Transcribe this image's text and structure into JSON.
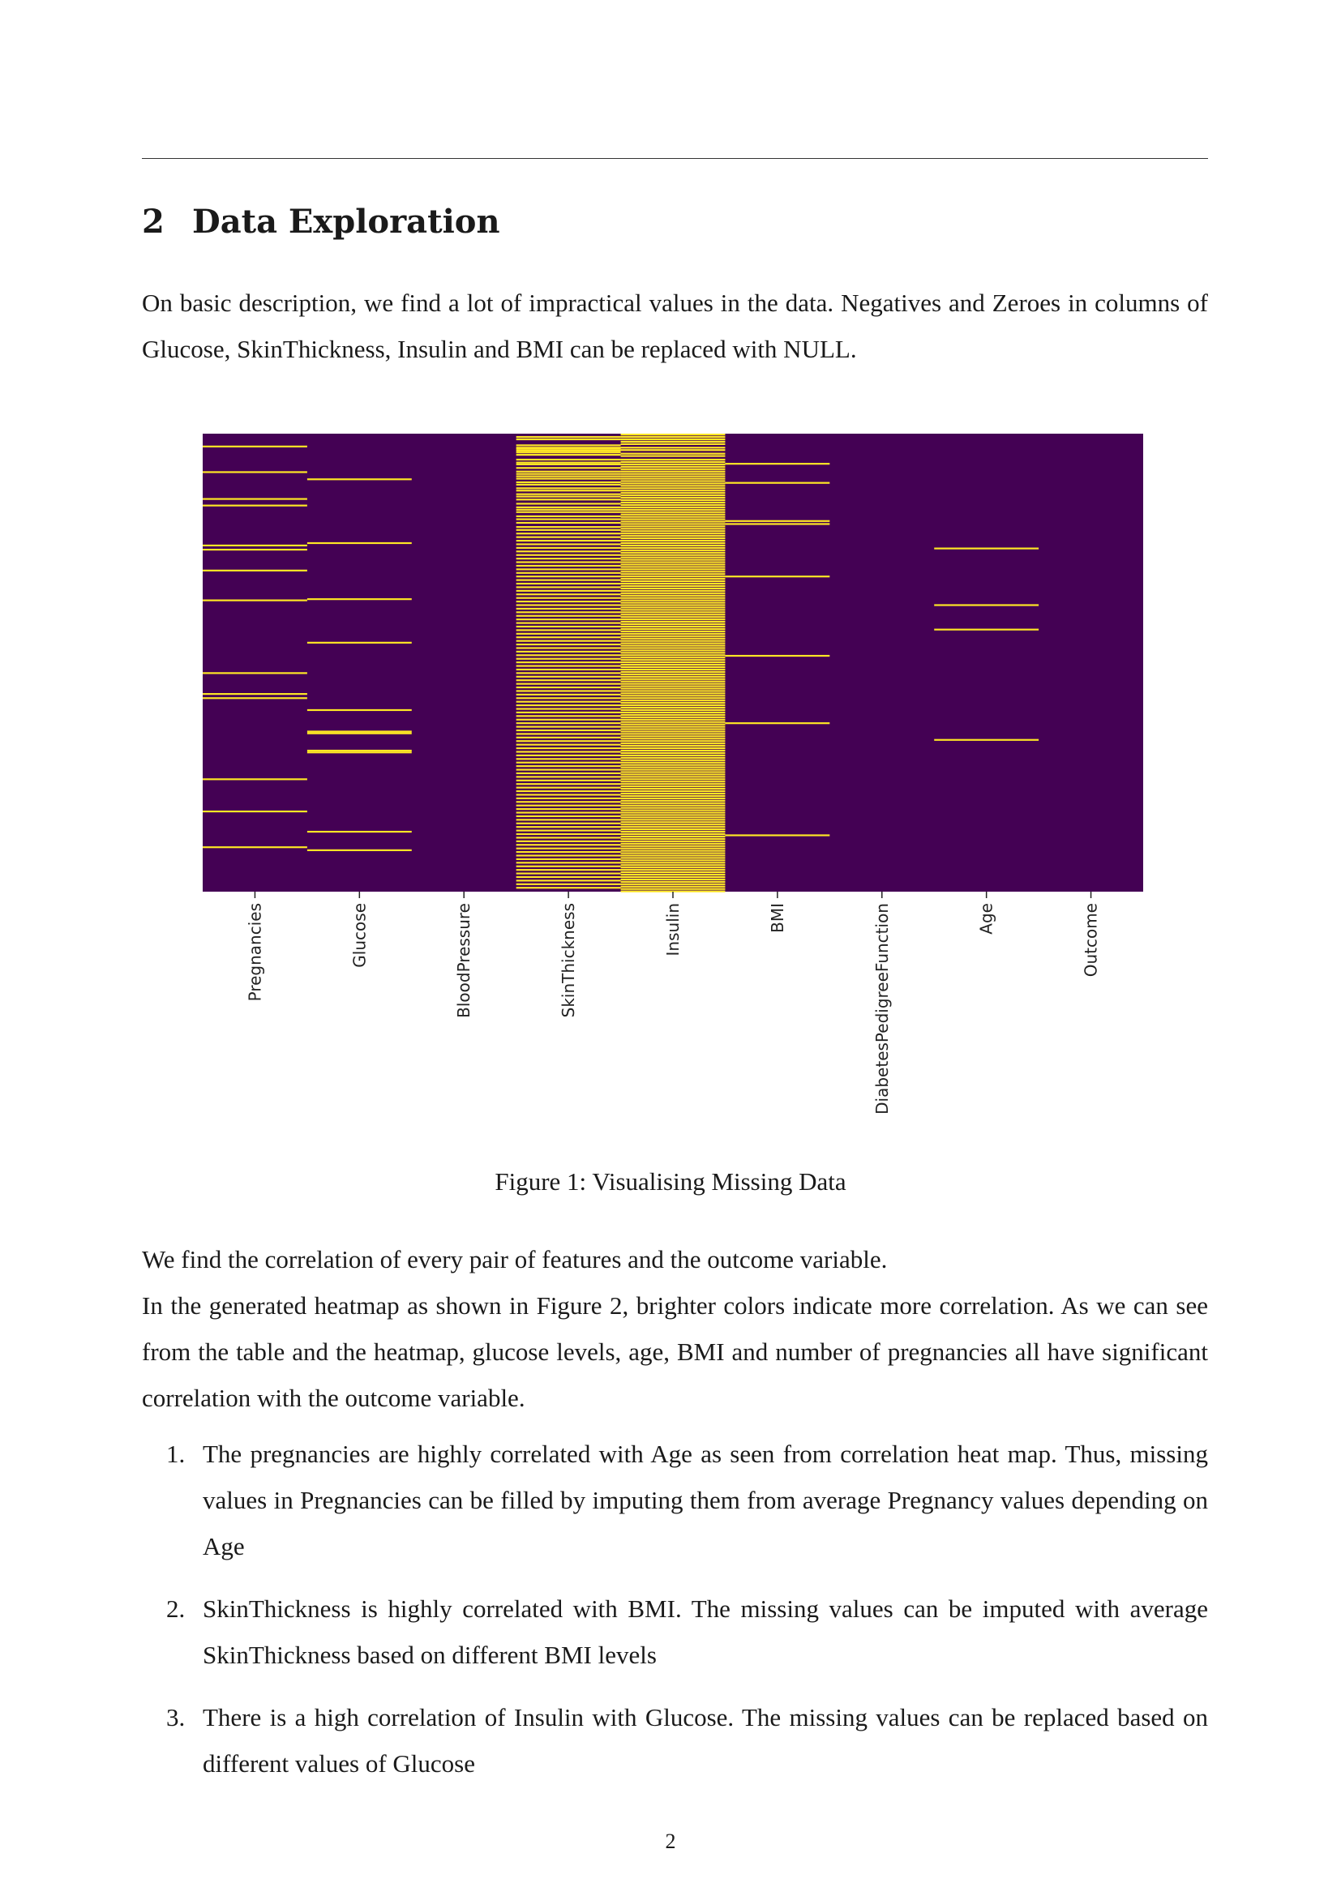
{
  "section": {
    "number": "2",
    "title": "Data Exploration"
  },
  "paragraph1": "On basic description, we find a lot of impractical values in the data. Negatives and Zeroes in columns of Glucose, SkinThickness, Insulin and BMI can be replaced with NULL.",
  "figure": {
    "caption": "Figure 1: Visualising Missing Data"
  },
  "chart_data": {
    "type": "heatmap",
    "title": "",
    "xlabel": "",
    "ylabel": "",
    "colormap": {
      "present": "#440154",
      "missing": "#fde725"
    },
    "grid": false,
    "legend": "none",
    "row_count": 768,
    "columns": [
      "Pregnancies",
      "Glucose",
      "BloodPressure",
      "SkinThickness",
      "Insulin",
      "BMI",
      "DiabetesPedigreeFunction",
      "Age",
      "Outcome"
    ],
    "missing_rows": {
      "Pregnancies": [
        20,
        63,
        108,
        119,
        186,
        193,
        228,
        278,
        400,
        435,
        442,
        578,
        632,
        692
      ],
      "Glucose": [
        75,
        182,
        276,
        349,
        462,
        498,
        501,
        530,
        533,
        666,
        697
      ],
      "BloodPressure": [],
      "SkinThickness": [
        4,
        8,
        18,
        22,
        24,
        27,
        30,
        34,
        42,
        47,
        50,
        56,
        62,
        66,
        70,
        74,
        80,
        84,
        90,
        94,
        100,
        104,
        109,
        116,
        122,
        126,
        130,
        137,
        142,
        148,
        155,
        160,
        166,
        172,
        178,
        184,
        190,
        196,
        202,
        208,
        214,
        220,
        226,
        232,
        238,
        244,
        250,
        256,
        262,
        268,
        274,
        280,
        286,
        292,
        298,
        304,
        310,
        316,
        322,
        328,
        334,
        340,
        346,
        352,
        358,
        364,
        370,
        376,
        382,
        388,
        394,
        400,
        406,
        412,
        418,
        424,
        430,
        436,
        442,
        448,
        454,
        460,
        466,
        472,
        478,
        484,
        490,
        496,
        502,
        508,
        514,
        520,
        526,
        532,
        538,
        544,
        550,
        556,
        562,
        568,
        574,
        580,
        586,
        592,
        598,
        604,
        610,
        616,
        622,
        628,
        634,
        640,
        646,
        652,
        658,
        664,
        670,
        676,
        682,
        688,
        694,
        700,
        706,
        712,
        718,
        724,
        730,
        736,
        742,
        748,
        754,
        760
      ],
      "Insulin": [
        0,
        4,
        8,
        12,
        16,
        22,
        26,
        32,
        36,
        42,
        46,
        50,
        54,
        58,
        62,
        66,
        70,
        74,
        78,
        82,
        86,
        90,
        94,
        98,
        102,
        106,
        110,
        114,
        118,
        122,
        126,
        130,
        134,
        138,
        142,
        146,
        150,
        154,
        158,
        162,
        166,
        170,
        174,
        178,
        182,
        186,
        190,
        194,
        198,
        202,
        206,
        210,
        214,
        218,
        222,
        226,
        230,
        234,
        238,
        242,
        246,
        250,
        254,
        258,
        262,
        266,
        270,
        274,
        278,
        282,
        286,
        290,
        294,
        298,
        302,
        306,
        310,
        314,
        318,
        322,
        326,
        330,
        334,
        338,
        342,
        346,
        350,
        354,
        358,
        362,
        366,
        370,
        374,
        378,
        382,
        386,
        390,
        394,
        398,
        402,
        406,
        410,
        414,
        418,
        422,
        426,
        430,
        434,
        438,
        442,
        446,
        450,
        454,
        458,
        462,
        466,
        470,
        474,
        478,
        482,
        486,
        490,
        494,
        498,
        502,
        506,
        510,
        514,
        518,
        522,
        526,
        530,
        534,
        538,
        542,
        546,
        550,
        554,
        558,
        562,
        566,
        570,
        574,
        578,
        582,
        586,
        590,
        594,
        598,
        602,
        606,
        610,
        614,
        618,
        622,
        626,
        630,
        634,
        638,
        642,
        646,
        650,
        654,
        658,
        662,
        666,
        670,
        674,
        678,
        682,
        686,
        690,
        694,
        698,
        702,
        706,
        710,
        714,
        718,
        722,
        726,
        730,
        734,
        738,
        742,
        746,
        750,
        754,
        758,
        762,
        766
      ],
      "BMI": [
        49,
        81,
        145,
        150,
        238,
        371,
        484,
        672
      ],
      "DiabetesPedigreeFunction": [],
      "Age": [
        191,
        286,
        327,
        512
      ],
      "Outcome": []
    }
  },
  "paragraph2": {
    "line1": "We find the correlation of every pair of features and the outcome variable.",
    "line2": "In the generated heatmap as shown in Figure 2, brighter colors indicate more correlation. As we can see from the table and the heatmap, glucose levels, age, BMI and number of pregnancies all have significant correlation with the outcome variable."
  },
  "list": [
    {
      "marker": "1.",
      "text": "The pregnancies are highly correlated with Age as seen from correlation heat map.  Thus, missing values in Pregnancies can be filled by imputing them from average Pregnancy values depending on Age"
    },
    {
      "marker": "2.",
      "text": "SkinThickness is highly correlated with BMI. The missing values can be imputed with average SkinThickness based on different BMI levels"
    },
    {
      "marker": "3.",
      "text": "There is a high correlation of Insulin with Glucose. The missing values can be replaced based on different values of Glucose"
    }
  ],
  "page_number": "2"
}
